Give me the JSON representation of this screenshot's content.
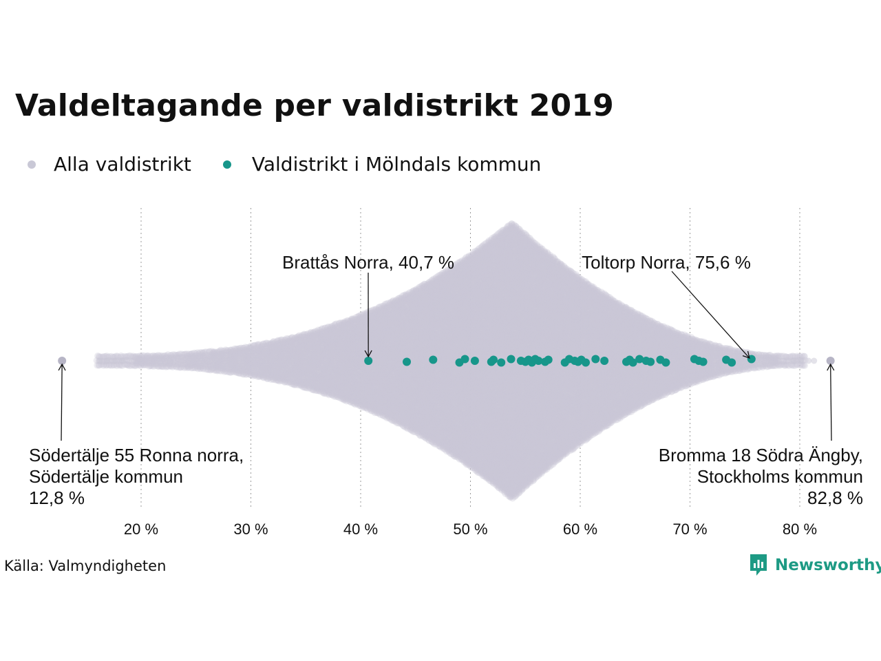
{
  "title": "Valdeltagande per valdistrikt 2019",
  "legend": [
    {
      "label": "Alla valdistrikt",
      "color": "#c9c8d6"
    },
    {
      "label": "Valdistrikt i Mölndals kommun",
      "color": "#17968a"
    }
  ],
  "source": "Källa: Valmyndigheten",
  "brand": {
    "name": "Newsworthy",
    "color": "#1d9a84",
    "icon": "newsworthy-logo-icon"
  },
  "chart_data": {
    "type": "scatter",
    "subtype": "beeswarm",
    "title": "Valdeltagande per valdistrikt 2019",
    "xlabel": "",
    "ylabel": "",
    "xlim": [
      13,
      83
    ],
    "x_ticks": [
      20,
      30,
      40,
      50,
      60,
      70,
      80
    ],
    "x_tick_labels": [
      "20 %",
      "30 %",
      "40 %",
      "50 %",
      "60 %",
      "70 %",
      "80 %"
    ],
    "grid": "vertical dotted",
    "legend_position": "top-left",
    "series": [
      {
        "name": "Alla valdistrikt",
        "color": "#c9c8d6",
        "distribution_note": "dense swarm of all Swedish election districts, concentrated around 50–60 %",
        "extremes": [
          12.8,
          82.8
        ]
      },
      {
        "name": "Valdistrikt i Mölndals kommun",
        "color": "#17968a",
        "values": [
          40.7,
          44.2,
          46.6,
          49.0,
          49.5,
          50.4,
          51.9,
          52.1,
          52.8,
          53.7,
          54.6,
          55.0,
          55.3,
          55.6,
          55.9,
          56.2,
          56.8,
          57.1,
          58.6,
          59.0,
          59.5,
          59.8,
          60.1,
          60.5,
          61.4,
          62.2,
          64.2,
          64.5,
          64.8,
          65.4,
          66.0,
          66.4,
          67.3,
          67.8,
          70.4,
          70.8,
          71.2,
          73.3,
          73.8,
          75.6
        ]
      }
    ],
    "annotations": [
      {
        "lines": [
          "Brattås Norra, 40,7 %"
        ],
        "value": 40.7,
        "series": "Valdistrikt i Mölndals kommun"
      },
      {
        "lines": [
          "Toltorp Norra, 75,6 %"
        ],
        "value": 75.6,
        "series": "Valdistrikt i Mölndals kommun"
      },
      {
        "lines": [
          "Södertälje 55 Ronna norra,",
          "Södertälje kommun",
          "12,8 %"
        ],
        "value": 12.8,
        "series": "Alla valdistrikt"
      },
      {
        "lines": [
          "Bromma 18 Södra Ängby,",
          "Stockholms kommun",
          "82,8 %"
        ],
        "value": 82.8,
        "series": "Alla valdistrikt"
      }
    ]
  }
}
